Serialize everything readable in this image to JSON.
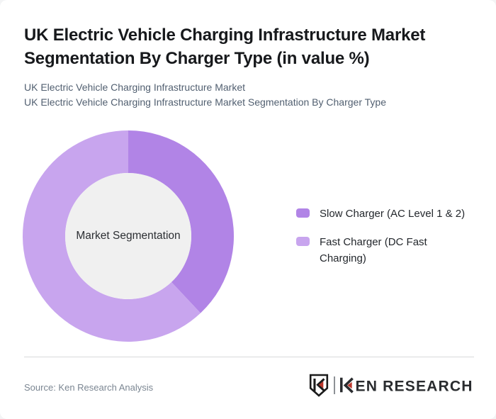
{
  "header": {
    "title": "UK Electric Vehicle Charging Infrastructure Market\nSegmentation By Charger Type (in value %)",
    "subtitle1": "UK Electric Vehicle Charging Infrastructure Market",
    "subtitle2": "UK Electric Vehicle Charging Infrastructure Market Segmentation By Charger Type"
  },
  "chart_data": {
    "type": "pie",
    "subtype": "donut",
    "title": "UK Electric Vehicle Charging Infrastructure Market Segmentation By Charger Type (in value %)",
    "center_label": "Market Segmentation",
    "categories": [
      "Slow Charger (AC Level 1 & 2)",
      "Fast Charger (DC Fast Charging)"
    ],
    "values": [
      38,
      62
    ],
    "unit": "value %",
    "colors": [
      "#b184e6",
      "#c8a5ee"
    ],
    "hole_color": "#f0f0f0",
    "start_angle_deg": 0,
    "direction": "clockwise",
    "legend_position": "right",
    "data_labels_shown": false
  },
  "legend": {
    "items": [
      {
        "label": "Slow Charger (AC Level 1 & 2)"
      },
      {
        "label": "Fast Charger (DC Fast\nCharging)"
      }
    ]
  },
  "footer": {
    "source": "Source: Ken Research Analysis",
    "logo_text": "KEN RESEARCH",
    "logo_wordmark_rest": "EN RESEARCH",
    "logo_ink": "#2a2c2f",
    "logo_red": "#bb372c"
  }
}
